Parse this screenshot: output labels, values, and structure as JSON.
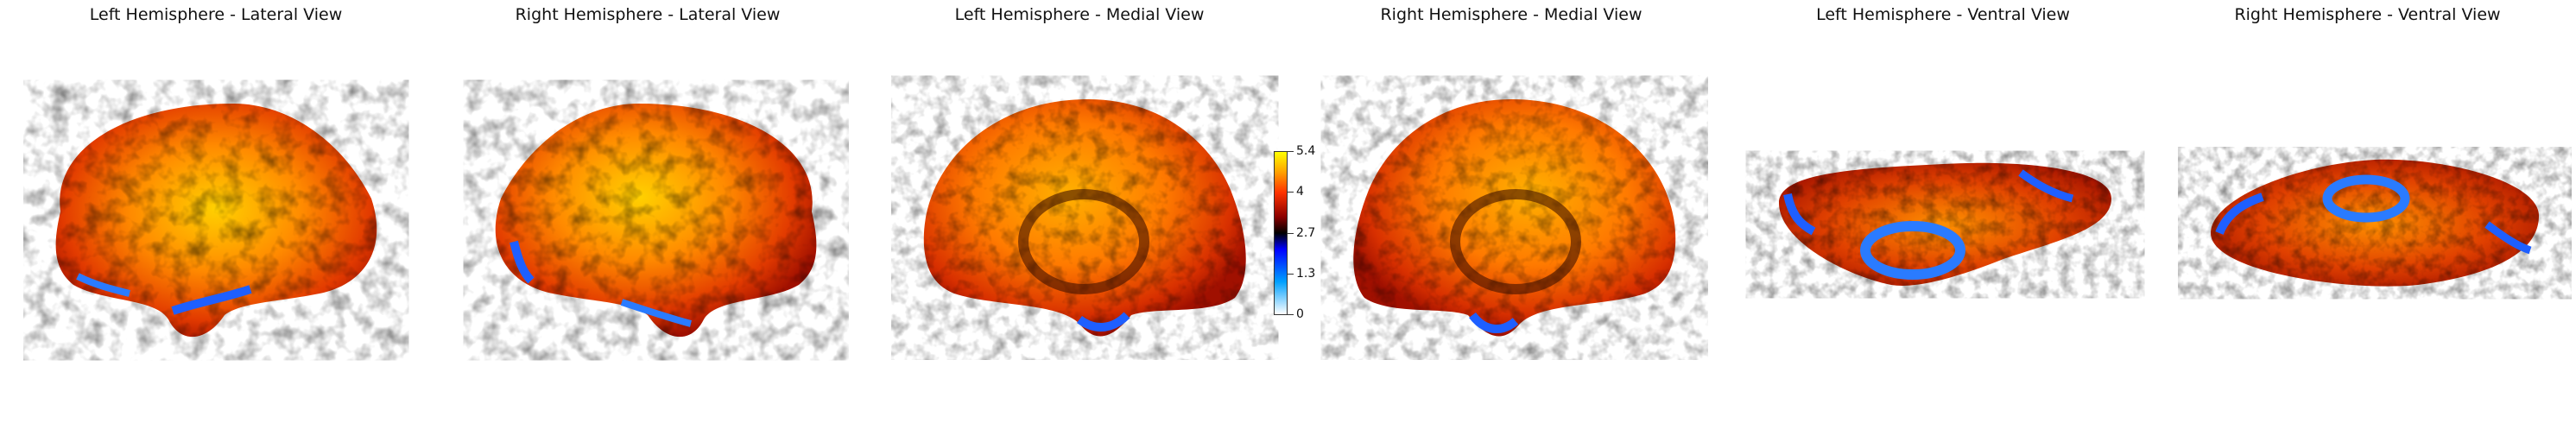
{
  "panels": [
    {
      "title": "Left Hemisphere - Lateral View"
    },
    {
      "title": "Right Hemisphere - Lateral View"
    },
    {
      "title": "Left Hemisphere - Medial View"
    },
    {
      "title": "Right Hemisphere - Medial View"
    },
    {
      "title": "Left Hemisphere - Ventral View"
    },
    {
      "title": "Right Hemisphere - Ventral View"
    }
  ],
  "colorbar": {
    "min": 0,
    "max": 5.4,
    "ticks": [
      "5.4",
      "4",
      "2.7",
      "1.3",
      "0"
    ],
    "colormap": "cold_hot",
    "colors": [
      "#ffffff",
      "#00a0ff",
      "#0000ff",
      "#000000",
      "#8b0000",
      "#ff3300",
      "#ffa500",
      "#ffff00"
    ]
  }
}
